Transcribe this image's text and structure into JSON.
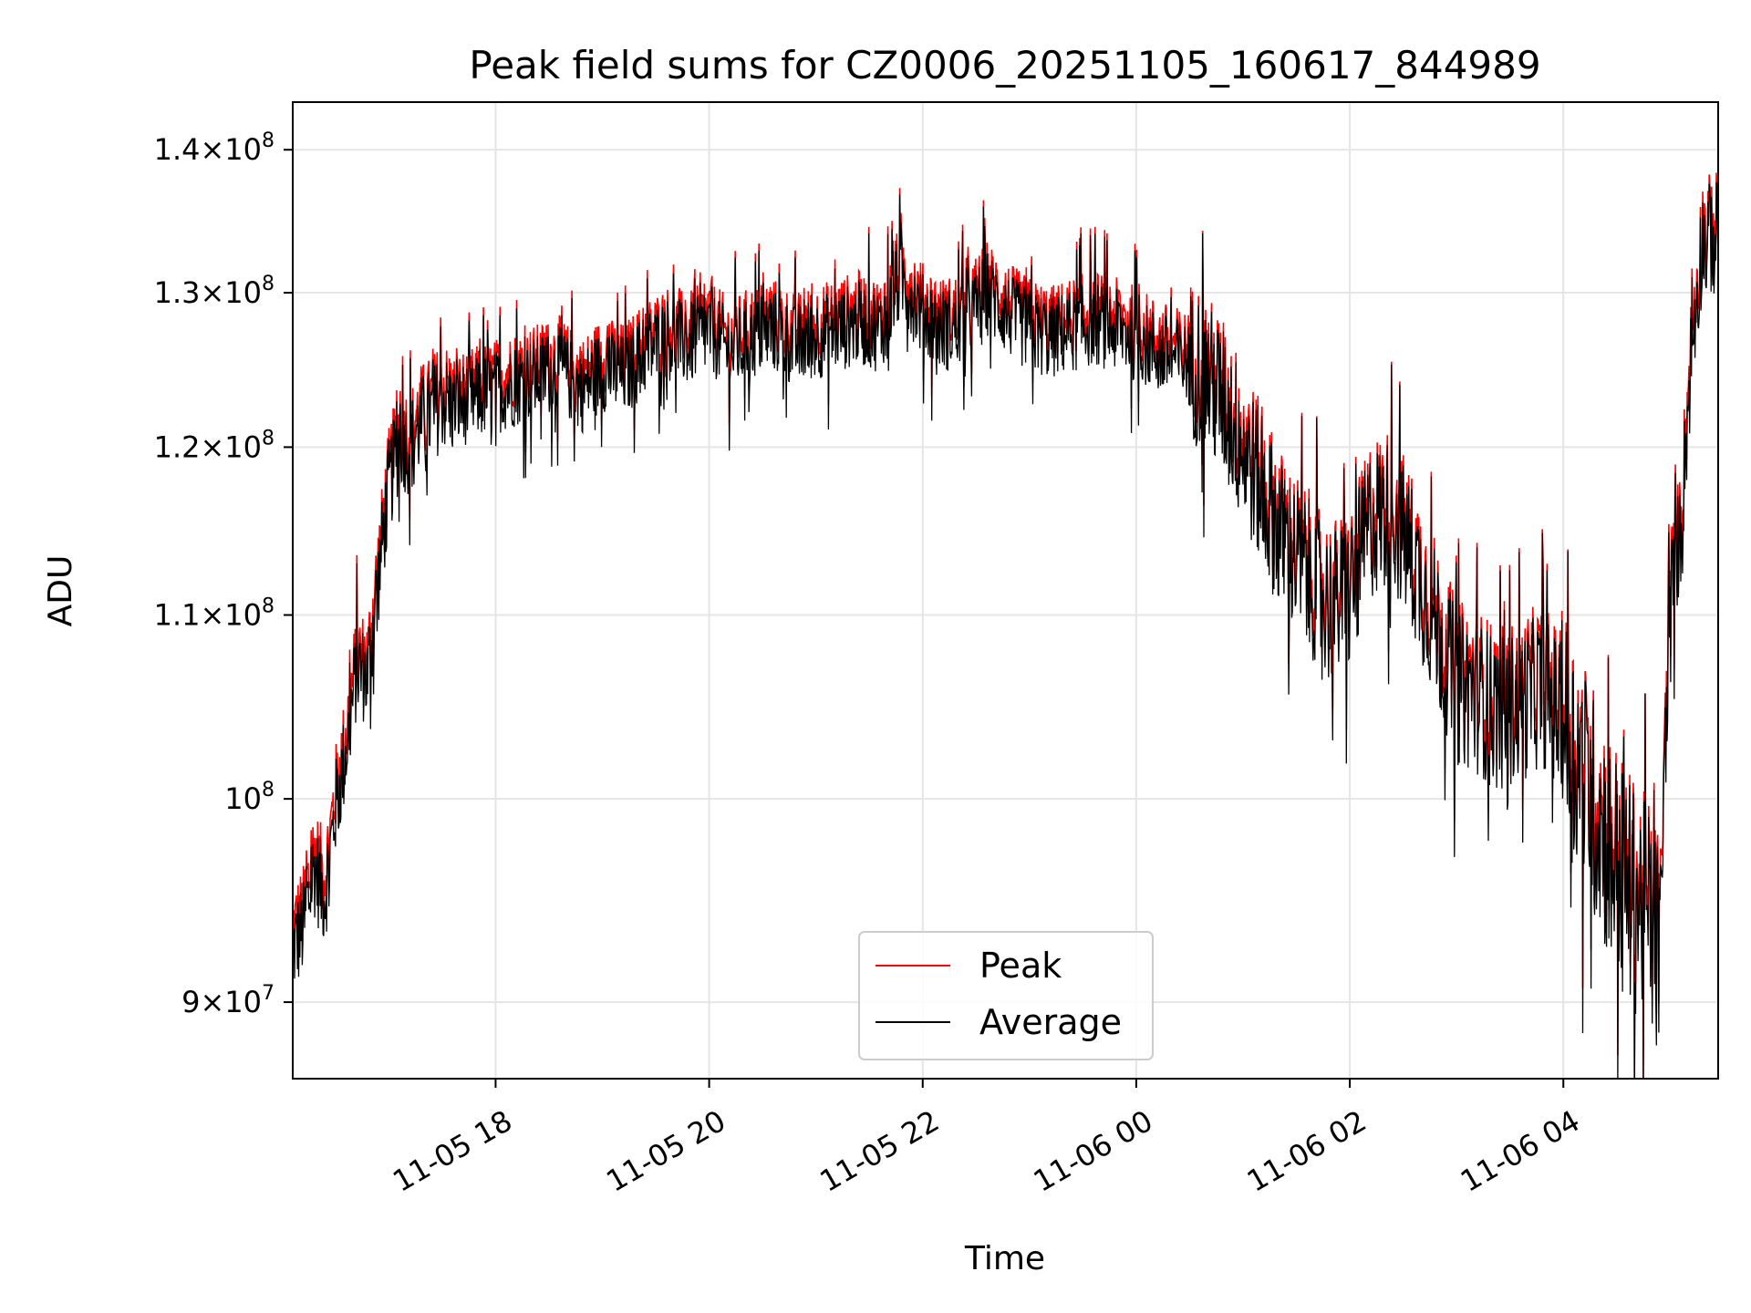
{
  "chart_data": {
    "type": "line",
    "title": "Peak field sums for CZ0006_20251105_160617_844989",
    "xlabel": "Time",
    "ylabel": "ADU",
    "y_scale": "log",
    "x_unit": "hours since 2025-11-05 00:00",
    "xlim": [
      16.1,
      29.45
    ],
    "ylim": [
      86500000,
      143500000
    ],
    "grid": true,
    "legend_position": "lower-center",
    "x_ticks": [
      {
        "value": 18,
        "label": "11-05 18"
      },
      {
        "value": 20,
        "label": "11-05 20"
      },
      {
        "value": 22,
        "label": "11-05 22"
      },
      {
        "value": 24,
        "label": "11-06 00"
      },
      {
        "value": 26,
        "label": "11-06 02"
      },
      {
        "value": 28,
        "label": "11-06 04"
      }
    ],
    "y_ticks": [
      {
        "value": 90000000,
        "mantissa": "9",
        "exponent": "7",
        "label": "9×10⁷"
      },
      {
        "value": 100000000,
        "mantissa": "",
        "exponent": "8",
        "label": "10⁸"
      },
      {
        "value": 110000000,
        "mantissa": "1.1",
        "exponent": "8",
        "label": "1.1×10⁸"
      },
      {
        "value": 120000000,
        "mantissa": "1.2",
        "exponent": "8",
        "label": "1.2×10⁸"
      },
      {
        "value": 130000000,
        "mantissa": "1.3",
        "exponent": "8",
        "label": "1.3×10⁸"
      },
      {
        "value": 140000000,
        "mantissa": "1.4",
        "exponent": "8",
        "label": "1.4×10⁸"
      }
    ],
    "series": [
      {
        "name": "Peak",
        "color": "#ff0000",
        "x": [
          16.1,
          16.2,
          16.3,
          16.4,
          16.5,
          16.6,
          16.7,
          16.8,
          16.9,
          17.0,
          17.1,
          17.2,
          17.3,
          17.4,
          17.5,
          17.6,
          17.8,
          18.0,
          18.2,
          18.4,
          18.6,
          18.8,
          19.0,
          19.2,
          19.4,
          19.6,
          19.8,
          20.0,
          20.2,
          20.4,
          20.6,
          20.8,
          21.0,
          21.2,
          21.4,
          21.6,
          21.8,
          22.0,
          22.2,
          22.4,
          22.6,
          22.8,
          23.0,
          23.2,
          23.4,
          23.6,
          23.8,
          24.0,
          24.2,
          24.4,
          24.6,
          24.8,
          25.0,
          25.2,
          25.4,
          25.6,
          25.8,
          26.0,
          26.2,
          26.4,
          26.6,
          26.8,
          27.0,
          27.2,
          27.4,
          27.6,
          27.8,
          28.0,
          28.2,
          28.4,
          28.6,
          28.8,
          28.9,
          29.0,
          29.1,
          29.2,
          29.3,
          29.45
        ],
        "y": [
          93500000,
          94500000,
          97500000,
          96000000,
          100500000,
          103500000,
          108000000,
          107500000,
          113000000,
          118500000,
          121500000,
          121000000,
          122500000,
          123000000,
          124000000,
          123500000,
          124000000,
          124500000,
          125000000,
          125500000,
          126000000,
          124500000,
          126000000,
          125500000,
          127000000,
          128000000,
          127500000,
          128500000,
          127000000,
          128000000,
          128500000,
          127500000,
          128000000,
          128500000,
          129000000,
          128500000,
          132000000,
          129500000,
          128500000,
          129000000,
          131000000,
          129500000,
          128500000,
          128000000,
          128500000,
          129000000,
          128500000,
          128000000,
          127000000,
          126500000,
          126000000,
          124000000,
          121000000,
          118000000,
          115000000,
          113500000,
          111500000,
          112000000,
          116500000,
          117000000,
          114000000,
          110500000,
          107000000,
          106500000,
          105500000,
          106000000,
          107000000,
          105000000,
          102000000,
          99000000,
          96500000,
          95000000,
          93500000,
          112000000,
          116000000,
          127000000,
          134500000,
          135000000
        ]
      },
      {
        "name": "Average",
        "color": "#000000",
        "x": [
          16.1,
          16.2,
          16.3,
          16.4,
          16.5,
          16.6,
          16.7,
          16.8,
          16.9,
          17.0,
          17.1,
          17.2,
          17.3,
          17.4,
          17.5,
          17.6,
          17.8,
          18.0,
          18.2,
          18.4,
          18.6,
          18.8,
          19.0,
          19.2,
          19.4,
          19.6,
          19.8,
          20.0,
          20.2,
          20.4,
          20.6,
          20.8,
          21.0,
          21.2,
          21.4,
          21.6,
          21.8,
          22.0,
          22.2,
          22.4,
          22.6,
          22.8,
          23.0,
          23.2,
          23.4,
          23.6,
          23.8,
          24.0,
          24.2,
          24.4,
          24.6,
          24.8,
          25.0,
          25.2,
          25.4,
          25.6,
          25.8,
          26.0,
          26.2,
          26.4,
          26.6,
          26.8,
          27.0,
          27.2,
          27.4,
          27.6,
          27.8,
          28.0,
          28.2,
          28.4,
          28.6,
          28.8,
          28.9,
          29.0,
          29.1,
          29.2,
          29.3,
          29.45
        ],
        "y": [
          92500000,
          93500000,
          96500000,
          95000000,
          99500000,
          102500000,
          107000000,
          106500000,
          112000000,
          117500000,
          120500000,
          120000000,
          121500000,
          122000000,
          123000000,
          122500000,
          123000000,
          123500000,
          124000000,
          124500000,
          125000000,
          123500000,
          125000000,
          124500000,
          126000000,
          127000000,
          126500000,
          127500000,
          126000000,
          127000000,
          127500000,
          126500000,
          127000000,
          127500000,
          128000000,
          127500000,
          131000000,
          128500000,
          127500000,
          128000000,
          130000000,
          128500000,
          127500000,
          127000000,
          127500000,
          128000000,
          127500000,
          127000000,
          126000000,
          125500000,
          125000000,
          123000000,
          120000000,
          117000000,
          114000000,
          112500000,
          110500000,
          111000000,
          115500000,
          116000000,
          113000000,
          109500000,
          106000000,
          105500000,
          104500000,
          105000000,
          106000000,
          104000000,
          101000000,
          98000000,
          95500000,
          94000000,
          92500000,
          111000000,
          115000000,
          126000000,
          133500000,
          134000000
        ]
      }
    ]
  }
}
